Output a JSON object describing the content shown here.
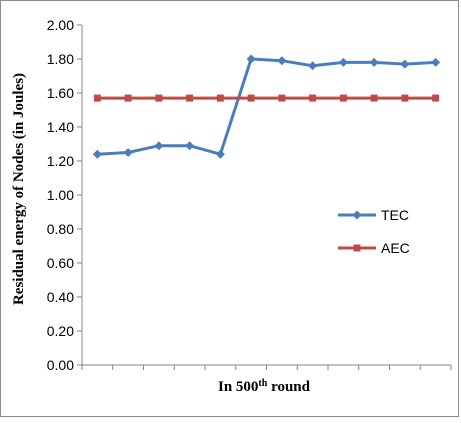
{
  "chart_data": {
    "type": "line",
    "xlabel_prefix": "In  500",
    "xlabel_sup": "th",
    "xlabel_suffix": " round",
    "ylabel": "Residual energy of Nodes (in Joules)",
    "ylim": [
      0,
      2
    ],
    "yticks": [
      "0.00",
      "0.20",
      "0.40",
      "0.60",
      "0.80",
      "1.00",
      "1.20",
      "1.40",
      "1.60",
      "1.80",
      "2.00"
    ],
    "x": [
      1,
      2,
      3,
      4,
      5,
      6,
      7,
      8,
      9,
      10,
      11,
      12
    ],
    "grid": false,
    "legend_position": "right",
    "series": [
      {
        "name": "TEC",
        "color": "#4a7ebb",
        "marker": "diamond",
        "values": [
          1.24,
          1.25,
          1.29,
          1.29,
          1.24,
          1.8,
          1.79,
          1.76,
          1.78,
          1.78,
          1.77,
          1.78
        ]
      },
      {
        "name": "AEC",
        "color": "#be4b48",
        "marker": "square",
        "values": [
          1.57,
          1.57,
          1.57,
          1.57,
          1.57,
          1.57,
          1.57,
          1.57,
          1.57,
          1.57,
          1.57,
          1.57
        ]
      }
    ]
  }
}
